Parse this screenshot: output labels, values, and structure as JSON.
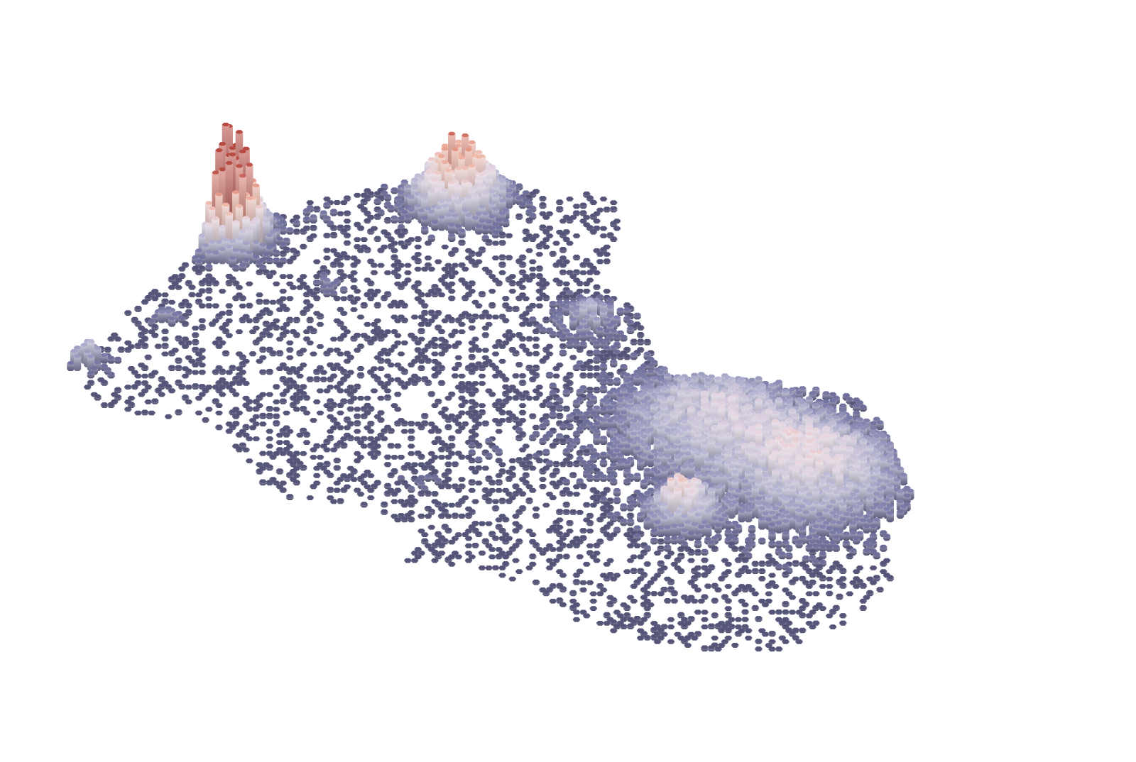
{
  "map": {
    "type": "3d-hexbin-density",
    "base_color": "#55557a",
    "color_ramp": [
      "#5a5a85",
      "#7c7caa",
      "#b3b3d1",
      "#e8d8e3",
      "#f0b8a8",
      "#e08a7a",
      "#b84a42"
    ],
    "peaks": [
      {
        "name": "northwest-cluster",
        "intensity": 1.0
      },
      {
        "name": "north-cluster",
        "intensity": 0.85
      },
      {
        "name": "west-edge-cluster",
        "intensity": 0.5
      },
      {
        "name": "central-east-cluster",
        "intensity": 0.45
      },
      {
        "name": "east-cluster",
        "intensity": 0.6
      },
      {
        "name": "southeast-cluster",
        "intensity": 0.65
      }
    ]
  }
}
